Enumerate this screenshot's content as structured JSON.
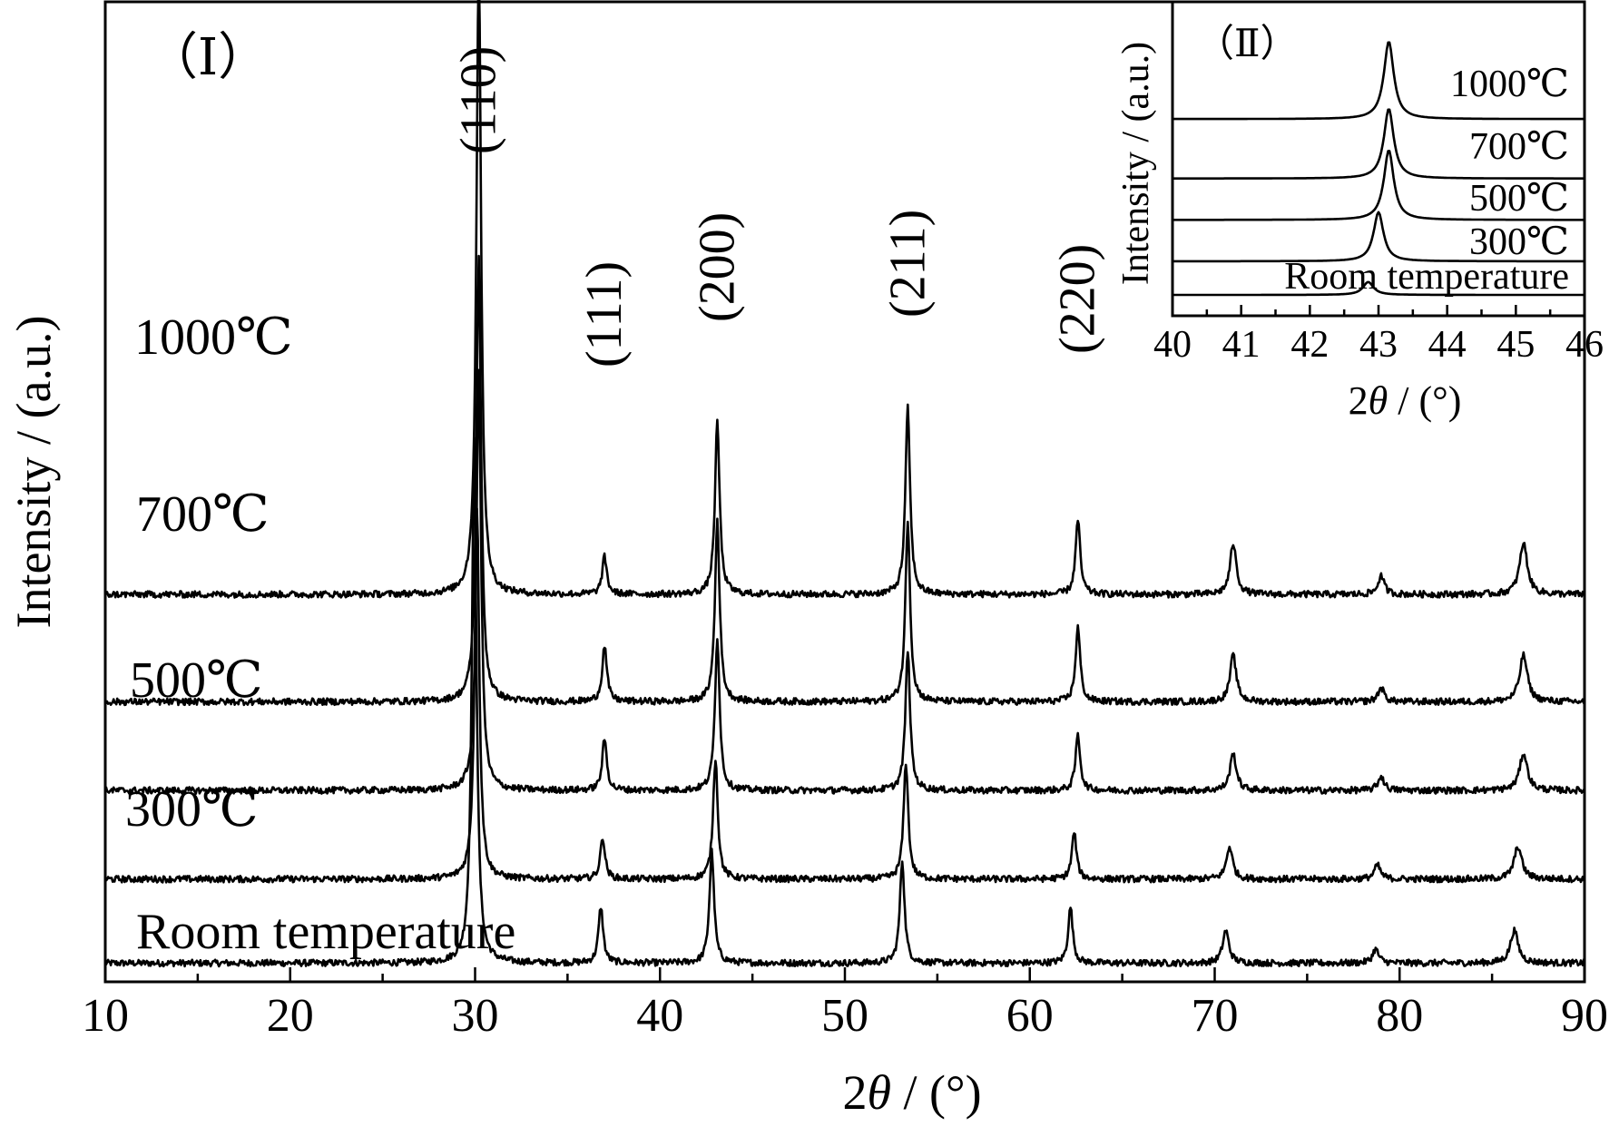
{
  "chart_data": [
    {
      "id": "main",
      "panel_label": "（Ⅰ）",
      "type": "line",
      "xlabel_prefix": "2",
      "xlabel_symbol": "θ",
      "xlabel_suffix": " / (°)",
      "ylabel": "Intensity / (a.u.)",
      "xlim": [
        10,
        90
      ],
      "x_ticks": [
        10,
        20,
        30,
        40,
        50,
        60,
        70,
        80,
        90
      ],
      "y_ticks_shown": false,
      "series": [
        {
          "name": "Room temperature",
          "baseline": 0.0,
          "peaks": [
            [
              29.95,
              5.6,
              0.3
            ],
            [
              36.8,
              0.6,
              0.3
            ],
            [
              42.8,
              1.2,
              0.3
            ],
            [
              53.1,
              1.1,
              0.3
            ],
            [
              62.2,
              0.6,
              0.3
            ],
            [
              70.6,
              0.35,
              0.4
            ],
            [
              78.7,
              0.15,
              0.4
            ],
            [
              86.2,
              0.35,
              0.5
            ]
          ]
        },
        {
          "name": "300℃",
          "baseline": 0.9,
          "peaks": [
            [
              30.1,
              4.0,
              0.3
            ],
            [
              36.9,
              0.45,
              0.3
            ],
            [
              43.0,
              1.3,
              0.3
            ],
            [
              53.3,
              1.25,
              0.3
            ],
            [
              62.4,
              0.5,
              0.3
            ],
            [
              70.8,
              0.35,
              0.4
            ],
            [
              78.8,
              0.15,
              0.4
            ],
            [
              86.4,
              0.35,
              0.5
            ]
          ]
        },
        {
          "name": "500℃",
          "baseline": 1.85,
          "peaks": [
            [
              30.2,
              4.5,
              0.3
            ],
            [
              37.0,
              0.55,
              0.3
            ],
            [
              43.1,
              1.65,
              0.3
            ],
            [
              53.4,
              1.5,
              0.3
            ],
            [
              62.6,
              0.6,
              0.3
            ],
            [
              71.0,
              0.4,
              0.4
            ],
            [
              79.0,
              0.15,
              0.4
            ],
            [
              86.7,
              0.4,
              0.5
            ]
          ]
        },
        {
          "name": "700℃",
          "baseline": 2.8,
          "peaks": [
            [
              30.2,
              4.8,
              0.3
            ],
            [
              37.0,
              0.6,
              0.3
            ],
            [
              43.1,
              1.95,
              0.3
            ],
            [
              53.4,
              1.95,
              0.3
            ],
            [
              62.6,
              0.8,
              0.3
            ],
            [
              71.0,
              0.5,
              0.4
            ],
            [
              79.0,
              0.15,
              0.4
            ],
            [
              86.7,
              0.5,
              0.5
            ]
          ]
        },
        {
          "name": "1000℃",
          "baseline": 3.95,
          "peaks": [
            [
              30.2,
              6.8,
              0.3
            ],
            [
              37.0,
              0.4,
              0.3
            ],
            [
              43.1,
              1.85,
              0.3
            ],
            [
              53.4,
              2.0,
              0.3
            ],
            [
              62.6,
              0.8,
              0.3
            ],
            [
              71.0,
              0.55,
              0.4
            ],
            [
              79.0,
              0.2,
              0.4
            ],
            [
              86.7,
              0.55,
              0.5
            ]
          ]
        }
      ],
      "ylim": [
        -0.2,
        10.3
      ],
      "peak_labels": [
        {
          "label": "(110)",
          "x": 30.2
        },
        {
          "label": "(111)",
          "x": 37.0
        },
        {
          "label": "(200)",
          "x": 43.1
        },
        {
          "label": "(211)",
          "x": 53.4
        },
        {
          "label": "(220)",
          "x": 62.6
        }
      ]
    },
    {
      "id": "inset",
      "panel_label": "（Ⅱ）",
      "type": "line",
      "xlabel_prefix": "2",
      "xlabel_symbol": "θ",
      "xlabel_suffix": " / (°)",
      "ylabel": "Intensity / (a.u.)",
      "xlim": [
        40,
        46
      ],
      "x_ticks": [
        40,
        41,
        42,
        43,
        44,
        45,
        46
      ],
      "y_ticks_shown": false,
      "ylim": [
        0,
        5.0
      ],
      "series": [
        {
          "name": "Room temperature",
          "baseline": 0.0,
          "peak": [
            42.85,
            0.25,
            0.16
          ]
        },
        {
          "name": "300℃",
          "baseline": 0.65,
          "peak": [
            43.0,
            0.95,
            0.15
          ]
        },
        {
          "name": "500℃",
          "baseline": 1.45,
          "peak": [
            43.15,
            1.35,
            0.15
          ]
        },
        {
          "name": "700℃",
          "baseline": 2.25,
          "peak": [
            43.15,
            1.35,
            0.15
          ]
        },
        {
          "name": "1000℃",
          "baseline": 3.4,
          "peak": [
            43.15,
            1.5,
            0.15
          ]
        }
      ]
    }
  ]
}
